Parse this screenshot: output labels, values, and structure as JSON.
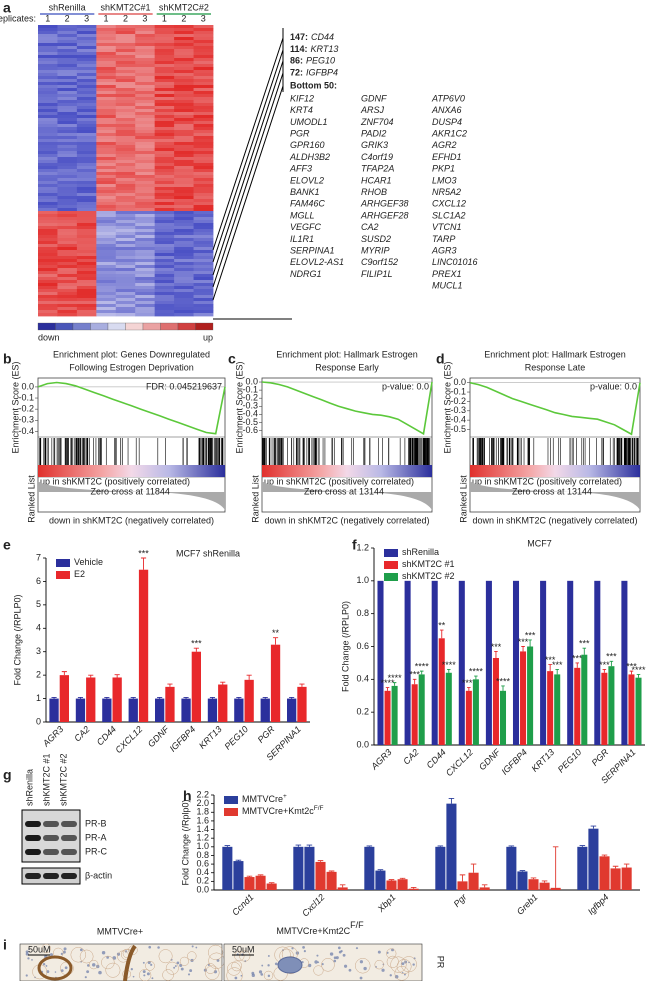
{
  "panel_labels": [
    "a",
    "b",
    "c",
    "d",
    "e",
    "f",
    "g",
    "h",
    "i"
  ],
  "heatmap": {
    "groups": [
      "shRenilla",
      "shKMT2C#1",
      "shKMT2C#2"
    ],
    "replicates_label": "Replicates:",
    "replicates": [
      "1",
      "2",
      "3",
      "1",
      "2",
      "3",
      "1",
      "2",
      "3"
    ],
    "scale_low": "down",
    "scale_high": "up"
  },
  "gene_list": {
    "top": [
      {
        "count": "147:",
        "gene": "CD44"
      },
      {
        "count": "114:",
        "gene": "KRT13"
      },
      {
        "count": "86:",
        "gene": "PEG10"
      },
      {
        "count": "72:",
        "gene": "IGFBP4"
      }
    ],
    "bottom_title": "Bottom 50:",
    "bottom": [
      [
        "KIF12",
        "KRT4",
        "UMODL1",
        "PGR",
        "GPR160",
        "ALDH3B2",
        "AFF3",
        "ELOVL2",
        "BANK1",
        "FAM46C",
        "MGLL",
        "VEGFC",
        "IL1R1",
        "SERPINA1",
        "ELOVL2-AS1",
        "NDRG1"
      ],
      [
        "GDNF",
        "ARSJ",
        "ZNF704",
        "PADI2",
        "GRIK3",
        "C4orf19",
        "TFAP2A",
        "HCAR1",
        "RHOB",
        "ARHGEF38",
        "ARHGEF28",
        "CA2",
        "SUSD2",
        "MYRIP",
        "C9orf152",
        "FILIP1L"
      ],
      [
        "ATP6V0",
        "ANXA6",
        "DUSP4",
        "AKR1C2",
        "AGR2",
        "EFHD1",
        "PKP1",
        "LMO3",
        "NR5A2",
        "CXCL12",
        "SLC1A2",
        "VTCN1",
        "TARP",
        "AGR3",
        "LINC01016",
        "PREX1",
        "MUCL1"
      ]
    ]
  },
  "chart_data": [
    {
      "type": "gsea",
      "title": [
        "Enrichment plot: Genes Downregulated",
        "Following Estrogen Deprivation"
      ],
      "annotation": "FDR: 0.045219637",
      "ylabel": "Enrichment Score (ES)",
      "color": "#5cc83b",
      "ylim": [
        -0.45,
        0.08
      ],
      "yticks": [
        {
          "value": 0,
          "label": "0.0"
        },
        -0.1,
        -0.2,
        -0.3,
        -0.4
      ],
      "values": [
        0,
        0.03,
        0.04,
        0.03,
        0.01,
        -0.02,
        -0.05,
        -0.08,
        -0.11,
        -0.14,
        -0.17,
        -0.2,
        -0.23,
        -0.26,
        -0.29,
        -0.32,
        -0.35,
        -0.38,
        -0.41,
        -0.42,
        0
      ],
      "ranked_label": "Ranked List",
      "zero_cross": "Zero cross at 11844",
      "pos_label": "up in shKMT2C (positively correlated)",
      "neg_label": "down in shKMT2C (negatively correlated)"
    },
    {
      "type": "gsea",
      "title": [
        "Enrichment plot: Hallmark Estrogen",
        "Response Early"
      ],
      "annotation": "p-value: 0.0",
      "ylabel": "Enrichment Score (ES)",
      "color": "#5cc83b",
      "ylim": [
        -0.68,
        0.05
      ],
      "yticks": [
        {
          "value": 0,
          "label": "0.0"
        },
        -0.1,
        -0.2,
        -0.3,
        -0.4,
        -0.5,
        -0.6
      ],
      "values": [
        0,
        -0.01,
        -0.03,
        -0.06,
        -0.1,
        -0.14,
        -0.18,
        -0.22,
        -0.26,
        -0.3,
        -0.33,
        -0.36,
        -0.38,
        -0.4,
        -0.41,
        -0.43,
        -0.46,
        -0.52,
        -0.58,
        -0.64,
        0
      ],
      "ranked_label": "Ranked List",
      "zero_cross": "Zero cross at 13144",
      "pos_label": "up in shKMT2C (positively correlated)",
      "neg_label": "down in shKMT2C (negatively correlated)"
    },
    {
      "type": "gsea",
      "title": [
        "Enrichment plot: Hallmark Estrogen",
        "Response Late"
      ],
      "annotation": "p-value: 0.0",
      "ylabel": "Enrichment Score (ES)",
      "color": "#5cc83b",
      "ylim": [
        -0.58,
        0.05
      ],
      "yticks": [
        {
          "value": 0,
          "label": "0.0"
        },
        -0.1,
        -0.2,
        -0.3,
        -0.4,
        -0.5
      ],
      "values": [
        0,
        -0.02,
        -0.05,
        -0.09,
        -0.13,
        -0.17,
        -0.2,
        -0.23,
        -0.26,
        -0.29,
        -0.32,
        -0.34,
        -0.36,
        -0.37,
        -0.38,
        -0.39,
        -0.42,
        -0.45,
        -0.5,
        -0.55,
        0
      ],
      "ranked_label": "Ranked List",
      "zero_cross": "Zero cross at 13144",
      "pos_label": "up in shKMT2C (positively correlated)",
      "neg_label": "down in shKMT2C (negatively correlated)"
    },
    {
      "type": "bar",
      "title": "MCF7 shRenilla",
      "ylabel": "Fold Change (/RPLP0)",
      "categories": [
        "AGR3",
        "CA2",
        "CD44",
        "CXCL12",
        "GDNF",
        "IGFBP4",
        "KRT13",
        "PEG10",
        "PGR",
        "SERPINA1"
      ],
      "ylim": [
        0,
        7
      ],
      "yticks": [
        0,
        1,
        2,
        3,
        4,
        5,
        6,
        7
      ],
      "legend": "upper left",
      "series": [
        {
          "name": "Vehicle",
          "color": "#2b2f9c",
          "values": [
            1,
            1,
            1,
            1,
            1,
            1,
            1,
            1,
            1,
            1
          ],
          "errors": [
            0.05,
            0.05,
            0.05,
            0.05,
            0.05,
            0.05,
            0.05,
            0.05,
            0.05,
            0.05
          ]
        },
        {
          "name": "E2",
          "color": "#e8282b",
          "values": [
            2.0,
            1.9,
            1.9,
            6.5,
            1.5,
            3.0,
            1.6,
            1.8,
            3.3,
            1.5
          ],
          "errors": [
            0.15,
            0.1,
            0.12,
            0.5,
            0.12,
            0.15,
            0.1,
            0.2,
            0.3,
            0.12
          ],
          "sig": [
            null,
            null,
            null,
            "***",
            null,
            "***",
            null,
            null,
            "**",
            null
          ]
        }
      ]
    },
    {
      "type": "bar",
      "title": "MCF7",
      "ylabel": "Fold Change (/RPLP0)",
      "categories": [
        "AGR3",
        "CA2",
        "CD44",
        "CXCL12",
        "GDNF",
        "IGFBP4",
        "KRT13",
        "PEG10",
        "PGR",
        "SERPINA1"
      ],
      "ylim": [
        0,
        1.2
      ],
      "yticks": [
        {
          "value": 0,
          "label": "0.0"
        },
        0.2,
        0.4,
        0.6,
        0.8,
        {
          "value": 1,
          "label": "1.0"
        },
        1.2
      ],
      "legend": "upper left",
      "series": [
        {
          "name": "shRenilla",
          "color": "#2b2f9c",
          "values": [
            1,
            1,
            1,
            1,
            1,
            1,
            1,
            1,
            1,
            1
          ]
        },
        {
          "name": "shKMT2C #1",
          "color": "#e8282b",
          "values": [
            0.33,
            0.37,
            0.65,
            0.33,
            0.53,
            0.57,
            0.45,
            0.47,
            0.44,
            0.43
          ],
          "errors": [
            0.02,
            0.03,
            0.05,
            0.02,
            0.04,
            0.03,
            0.04,
            0.03,
            0.02,
            0.02
          ],
          "sig": [
            "****",
            "***",
            "**",
            "****",
            "***",
            "***",
            "***",
            "***",
            "***",
            "***"
          ]
        },
        {
          "name": "shKMT2C #2",
          "color": "#1f9e4a",
          "values": [
            0.36,
            0.43,
            0.44,
            0.4,
            0.33,
            0.6,
            0.43,
            0.55,
            0.48,
            0.41
          ],
          "errors": [
            0.02,
            0.02,
            0.02,
            0.02,
            0.03,
            0.04,
            0.03,
            0.04,
            0.03,
            0.02
          ],
          "sig": [
            "****",
            "****",
            "****",
            "****",
            "****",
            "***",
            "***",
            "***",
            "***",
            "****"
          ]
        }
      ]
    },
    {
      "type": "bar",
      "ylabel": "Fold Change (/Rplp0)",
      "categories": [
        "Ccnd1",
        "Cxcl12",
        "Xbp1",
        "Pgr",
        "Greb1",
        "Igfbp4"
      ],
      "ylim": [
        0,
        2.2
      ],
      "yticks": [
        {
          "value": 0,
          "label": "0.0"
        },
        0.2,
        0.4,
        0.6,
        0.8,
        {
          "value": 1,
          "label": "1.0"
        },
        1.2,
        1.4,
        1.6,
        1.8,
        {
          "value": 2,
          "label": "2.0"
        },
        2.2
      ],
      "legend": "upper left",
      "series": [
        {
          "name": "MMTVCre",
          "name_sup": "+",
          "color": "#2b3f9c",
          "values": [
            [
              1.0,
              0.67
            ],
            [
              1.0,
              1.0
            ],
            [
              1.0,
              0.45
            ],
            [
              1.0,
              2.0
            ],
            [
              1.0,
              0.43
            ],
            [
              1.0,
              1.42
            ]
          ],
          "errors": [
            [
              0.03,
              0.02
            ],
            [
              0.04,
              0.04
            ],
            [
              0.02,
              0.02
            ],
            [
              0.02,
              0.12
            ],
            [
              0.02,
              0.02
            ],
            [
              0.03,
              0.06
            ]
          ]
        },
        {
          "name": "MMTVCre+Kmt2c",
          "name_sup": "F/F",
          "color": "#e0392f",
          "values": [
            [
              0.3,
              0.33,
              0.15
            ],
            [
              0.65,
              0.42,
              0.06
            ],
            [
              0.22,
              0.25,
              0.03
            ],
            [
              0.2,
              0.4,
              0.06
            ],
            [
              0.25,
              0.17,
              0.05
            ],
            [
              0.78,
              0.5,
              0.52
            ]
          ],
          "errors": [
            [
              0.02,
              0.02,
              0.02
            ],
            [
              0.03,
              0.02,
              0.06
            ],
            [
              0.02,
              0.02,
              0.03
            ],
            [
              0.15,
              0.2,
              0.06
            ],
            [
              0.03,
              0.04,
              0.95
            ],
            [
              0.03,
              0.05,
              0.08
            ]
          ]
        }
      ]
    }
  ],
  "western_blot": {
    "lanes": [
      "shRenilla",
      "shKMT2C #1",
      "shKMT2C #2"
    ],
    "bands": [
      "PR-B",
      "PR-A",
      "PR-C"
    ],
    "loading": "β-actin"
  },
  "histology": {
    "left_title": "MMTVCre+",
    "right_title": "MMTVCre+Kmt2C",
    "right_title_sup": "F/F",
    "scale": "50uM",
    "stain": "PR"
  }
}
